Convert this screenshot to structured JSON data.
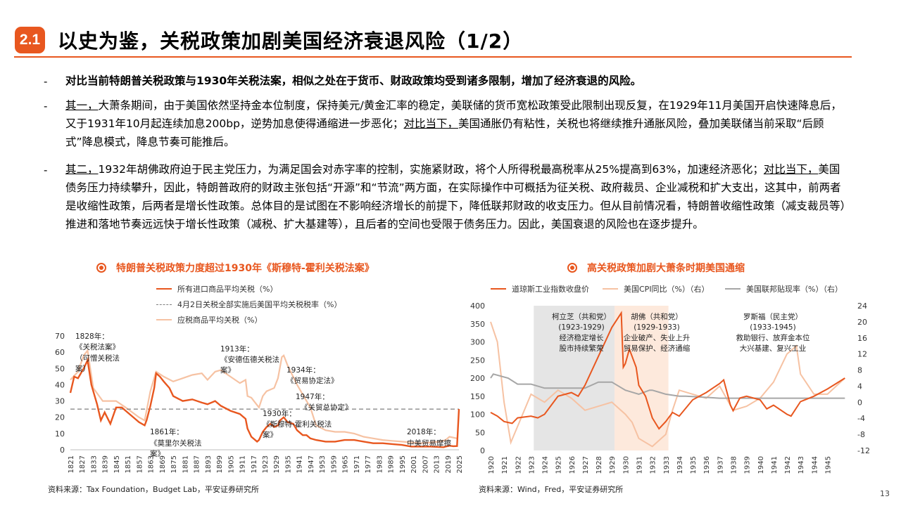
{
  "header": {
    "section_no": "2.1",
    "title": "以史为鉴，关税政策加剧美国经济衰退风险（1/2）"
  },
  "bullets": {
    "b1": "-",
    "b2": "-",
    "b3": "-",
    "p1": "对比当前特朗普关税政策与1930年关税法案，相似之处在于货币、财政政策均受到诸多限制，增加了经济衰退的风险。",
    "p2_u1": "其一，",
    "p2_a": "大萧条期间，由于美国依然坚持金本位制度，保持美元/黄金汇率的稳定，美联储的货币宽松政策受此限制出现反复，在1929年11月美国开启快速降息后，又于1931年10月起连续加息200bp，逆势加息使得通缩进一步恶化；",
    "p2_u2": "对比当下，",
    "p2_b": "美国通胀仍有粘性，关税也将继续推升通胀风险，叠加美联储当前采取“后顾式”降息模式，降息节奏可能推后。",
    "p3_u1": "其二，",
    "p3_a": "1932年胡佛政府迫于民主党压力，为满足国会对赤字率的控制，实施紧财政，将个人所得税最高税率从25%提高到63%，加速经济恶化；",
    "p3_u2": "对比当下，",
    "p3_b": "美国债务压力持续攀升，因此，特朗普政府的财政主张包括“开源”和“节流”两方面，在实际操作中可概括为征关税、政府裁员、企业减税和扩大支出，这其中，前两者是收缩性政策，后两者是增长性政策。总体目的是试图在不影响经济增长的前提下，降低联邦财政的收支压力。但从目前情况看，特朗普收缩性政策（减支裁员等）推进和落地节奏远远快于增长性政策（减税、扩大基建等），且后者的空间也受限于债务压力。因此，美国衰退的风险也在逐步提升。"
  },
  "chart_left": {
    "title": "特朗普关税政策力度超过1930年《斯穆特-霍利关税法案》",
    "legend": [
      "所有进口商品平均关税（%）",
      "4月2日关税全部实施后美国平均关税税率（%）",
      "应税商品平均关税（%）"
    ],
    "source": "资料来源：Tax Foundation，Budget Lab，平安证券研究所",
    "colors": {
      "all": "#e8571f",
      "ref": "#7f7f7f",
      "dutiable": "#f6c2a3"
    },
    "annotations": [
      "1828年：",
      "《关税法案》",
      "（可憎关税法",
      "案）",
      "1861年：",
      "《莫里尔关税法",
      "案》",
      "1913年：",
      "《安德伍德关税法",
      "案》",
      "1934年：",
      "《贸易协定法》",
      "1947年：",
      "《关贸总协定》",
      "1930年：",
      "《斯穆特-霍利关税法",
      "案》",
      "2018年：",
      "中美贸易摩擦"
    ]
  },
  "chart_right": {
    "title": "高关税政策加剧大萧条时期美国通缩",
    "legend": [
      "道琼斯工业指数收盘价",
      "美国CPI同比（%）（右）",
      "美国联邦贴现率（%）（右）"
    ],
    "source": "资料来源：Wind，Fred，平安证券研究所",
    "colors": {
      "dow": "#e8571f",
      "cpi": "#f6c2a3",
      "rate": "#a6a6a6"
    },
    "annotations": [
      [
        "柯立芝（共和党）",
        "(1923-1929)",
        "经济稳定增长",
        "股市持续繁荣"
      ],
      [
        "胡佛（共和党）",
        "(1929-1933)",
        "企业破产、失业上升",
        "贸易保护、经济通缩"
      ],
      [
        "罗斯福（民主党）",
        "(1933-1945)",
        "救助银行、放弃金本位",
        "大兴基建、复兴工业"
      ]
    ]
  },
  "chart_data": [
    {
      "type": "line",
      "title": "特朗普关税政策力度超过1930年《斯穆特-霍利关税法案》",
      "xlabel": "",
      "ylabel": "",
      "ylim": [
        0,
        70
      ],
      "yticks": [
        0,
        10,
        20,
        30,
        40,
        50,
        60,
        70
      ],
      "xlim": [
        1821,
        2025
      ],
      "xticks": [
        1821,
        1827,
        1833,
        1839,
        1845,
        1851,
        1857,
        1863,
        1869,
        1875,
        1881,
        1887,
        1893,
        1899,
        1905,
        1911,
        1917,
        1923,
        1929,
        1935,
        1941,
        1947,
        1953,
        1959,
        1965,
        1971,
        1977,
        1983,
        1989,
        1995,
        2001,
        2007,
        2013,
        2019,
        2025
      ],
      "series": [
        {
          "name": "所有进口商品平均关税（%）",
          "style": "solid",
          "x": [
            1821,
            1823,
            1825,
            1827,
            1828,
            1830,
            1832,
            1833,
            1835,
            1837,
            1839,
            1842,
            1845,
            1848,
            1850,
            1855,
            1857,
            1860,
            1861,
            1863,
            1865,
            1866,
            1868,
            1870,
            1873,
            1875,
            1880,
            1885,
            1890,
            1893,
            1897,
            1900,
            1905,
            1910,
            1913,
            1914,
            1916,
            1918,
            1919,
            1920,
            1922,
            1924,
            1926,
            1928,
            1930,
            1931,
            1932,
            1933,
            1935,
            1938,
            1940,
            1943,
            1945,
            1947,
            1950,
            1955,
            1960,
            1965,
            1970,
            1975,
            1980,
            1985,
            1990,
            1995,
            2000,
            2005,
            2010,
            2015,
            2017,
            2018,
            2020,
            2022,
            2024,
            2025
          ],
          "y": [
            35,
            45,
            44,
            48,
            50,
            55,
            40,
            36,
            28,
            18,
            23,
            16,
            26,
            26,
            24,
            19,
            17,
            15,
            18,
            27,
            38,
            47,
            45,
            42,
            38,
            33,
            30,
            31,
            29,
            28,
            30,
            27,
            24,
            22,
            19,
            13,
            8,
            6,
            5,
            6,
            11,
            14,
            16,
            14,
            15,
            18,
            19,
            20,
            17,
            16,
            12,
            9,
            9,
            7,
            6,
            5,
            5,
            6,
            6,
            5,
            4,
            4,
            3.5,
            3,
            2,
            2,
            2,
            1.7,
            1.6,
            2,
            2.5,
            2.2,
            2.3,
            25
          ]
        },
        {
          "name": "4月2日关税全部实施后美国平均关税税率（%）",
          "style": "dashed",
          "x": [
            1821,
            2025
          ],
          "y": [
            25,
            25
          ]
        },
        {
          "name": "应税商品平均关税（%）",
          "style": "solid",
          "x": [
            1821,
            1825,
            1828,
            1830,
            1833,
            1838,
            1845,
            1850,
            1857,
            1860,
            1863,
            1866,
            1870,
            1875,
            1880,
            1885,
            1890,
            1893,
            1897,
            1900,
            1905,
            1910,
            1913,
            1914,
            1916,
            1918,
            1920,
            1922,
            1924,
            1928,
            1930,
            1932,
            1933,
            1935,
            1940,
            1945,
            1947,
            1950,
            1955,
            1960,
            1965,
            1970,
            1975,
            1980,
            1985,
            1990,
            1995,
            2000,
            2005,
            2010,
            2015,
            2018,
            2020,
            2024
          ],
          "y": [
            43,
            48,
            58,
            61,
            38,
            30,
            30,
            26,
            20,
            18,
            36,
            48,
            45,
            42,
            44,
            46,
            47,
            43,
            48,
            49,
            45,
            41,
            43,
            33,
            32,
            29,
            26,
            33,
            36,
            38,
            44,
            57,
            58,
            52,
            40,
            30,
            26,
            15,
            12,
            11,
            11,
            10,
            8,
            7,
            6,
            5.5,
            5,
            4.5,
            4,
            4.5,
            5,
            6,
            8,
            7
          ]
        }
      ]
    },
    {
      "type": "line",
      "title": "高关税政策加剧大萧条时期美国通缩",
      "xlabel": "",
      "ylabel": "",
      "ylim": [
        0,
        400
      ],
      "y2lim": [
        -12,
        24
      ],
      "yticks": [
        0,
        50,
        100,
        150,
        200,
        250,
        300,
        350,
        400
      ],
      "y2ticks": [
        -12,
        -8,
        -4,
        0,
        4,
        8,
        12,
        16,
        20,
        24
      ],
      "xlim": [
        1920,
        1946.7
      ],
      "xticks": [
        "1920",
        "1921",
        "1922",
        "1923",
        "1924",
        "1925",
        "1926",
        "1927",
        "1928",
        "1929",
        "1930",
        "1931",
        "1932",
        "1933",
        "1934",
        "1935",
        "1936",
        "1937",
        "1938",
        "1939",
        "1940",
        "1941",
        "1942",
        "1943",
        "1944",
        "1945"
      ],
      "series": [
        {
          "name": "道琼斯工业指数收盘价",
          "axis": "left",
          "x": [
            1920,
            1920.5,
            1921,
            1921.6,
            1922,
            1923,
            1923.5,
            1924,
            1925,
            1926,
            1926.5,
            1927,
            1928,
            1928.5,
            1929,
            1929.7,
            1929.85,
            1930,
            1930.3,
            1930.8,
            1931,
            1931.5,
            1932,
            1932.5,
            1933,
            1933.5,
            1934,
            1935,
            1936,
            1937,
            1937.3,
            1937.8,
            1938,
            1938.5,
            1939,
            1940,
            1940.5,
            1941,
            1942,
            1942.3,
            1943,
            1944,
            1945,
            1946.3
          ],
          "y": [
            105,
            95,
            80,
            75,
            90,
            95,
            90,
            100,
            150,
            160,
            150,
            180,
            260,
            300,
            340,
            380,
            230,
            240,
            280,
            230,
            180,
            150,
            90,
            60,
            80,
            105,
            95,
            140,
            160,
            185,
            195,
            125,
            110,
            145,
            150,
            140,
            115,
            125,
            100,
            95,
            135,
            150,
            170,
            200
          ]
        },
        {
          "name": "美国CPI同比（%）（右）",
          "axis": "right",
          "x": [
            1920,
            1920.5,
            1921,
            1921.5,
            1922,
            1923,
            1924,
            1925,
            1926,
            1927,
            1928,
            1929,
            1930,
            1930.5,
            1931,
            1932,
            1933,
            1933.5,
            1934,
            1935,
            1936,
            1937,
            1938,
            1939,
            1940,
            1941,
            1942,
            1942.7,
            1943,
            1944,
            1945,
            1946.3
          ],
          "y": [
            20,
            15,
            0,
            -10,
            -6,
            2,
            0,
            3,
            1,
            -2,
            -1,
            0,
            -3,
            -5,
            -9,
            -11,
            -8,
            -2,
            3,
            2,
            1,
            4,
            -2,
            -1,
            1,
            5,
            12,
            14,
            7,
            2,
            2,
            6
          ]
        },
        {
          "name": "美国联邦贴现率（%）（右）",
          "axis": "right",
          "x": [
            1920,
            1920.2,
            1921.3,
            1922,
            1923,
            1924,
            1924.8,
            1925.5,
            1927,
            1928,
            1929,
            1930,
            1931,
            1931.8,
            1932,
            1932.5,
            1933,
            1934,
            1934.5,
            1937,
            1940,
            1942,
            1945,
            1946.3
          ],
          "y": [
            6,
            7,
            6,
            4.5,
            4.5,
            3.5,
            3.5,
            3.5,
            3.5,
            5,
            5,
            3,
            2,
            3,
            3,
            2.5,
            2,
            1.5,
            1.5,
            1,
            1,
            1,
            1,
            1
          ]
        }
      ]
    }
  ],
  "page": {
    "number": "13"
  }
}
